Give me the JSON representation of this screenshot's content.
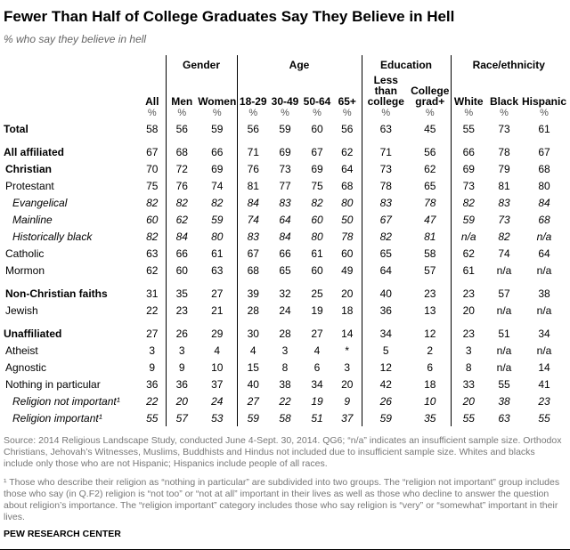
{
  "title": "Fewer Than Half of College Graduates Say They Believe in Hell",
  "subtitle": "% who say they believe in hell",
  "groups": [
    "Gender",
    "Age",
    "Education",
    "Race/ethnicity"
  ],
  "columns": [
    "All",
    "Men",
    "Women",
    "18-29",
    "30-49",
    "50-64",
    "65+",
    "Less than college",
    "College grad+",
    "White",
    "Black",
    "Hispanic"
  ],
  "unit": "%",
  "rows": [
    {
      "label": "Total",
      "style": "bold",
      "values": [
        "58",
        "56",
        "59",
        "56",
        "59",
        "60",
        "56",
        "63",
        "45",
        "55",
        "73",
        "61"
      ]
    },
    {
      "label": "All affiliated",
      "style": "bold gap",
      "values": [
        "67",
        "68",
        "66",
        "71",
        "69",
        "67",
        "62",
        "71",
        "56",
        "66",
        "78",
        "67"
      ]
    },
    {
      "label": "Christian",
      "style": "bold ind1",
      "values": [
        "70",
        "72",
        "69",
        "76",
        "73",
        "69",
        "64",
        "73",
        "62",
        "69",
        "79",
        "68"
      ]
    },
    {
      "label": "Protestant",
      "style": "ind1",
      "values": [
        "75",
        "76",
        "74",
        "81",
        "77",
        "75",
        "68",
        "78",
        "65",
        "73",
        "81",
        "80"
      ]
    },
    {
      "label": "Evangelical",
      "style": "it ind2",
      "values": [
        "82",
        "82",
        "82",
        "84",
        "83",
        "82",
        "80",
        "83",
        "78",
        "82",
        "83",
        "84"
      ]
    },
    {
      "label": "Mainline",
      "style": "it ind2",
      "values": [
        "60",
        "62",
        "59",
        "74",
        "64",
        "60",
        "50",
        "67",
        "47",
        "59",
        "73",
        "68"
      ]
    },
    {
      "label": "Historically black",
      "style": "it ind2",
      "values": [
        "82",
        "84",
        "80",
        "83",
        "84",
        "80",
        "78",
        "82",
        "81",
        "n/a",
        "82",
        "n/a"
      ]
    },
    {
      "label": "Catholic",
      "style": "ind1",
      "values": [
        "63",
        "66",
        "61",
        "67",
        "66",
        "61",
        "60",
        "65",
        "58",
        "62",
        "74",
        "64"
      ]
    },
    {
      "label": "Mormon",
      "style": "ind1",
      "values": [
        "62",
        "60",
        "63",
        "68",
        "65",
        "60",
        "49",
        "64",
        "57",
        "61",
        "n/a",
        "n/a"
      ]
    },
    {
      "label": "Non-Christian faiths",
      "style": "bold gap ind1",
      "values": [
        "31",
        "35",
        "27",
        "39",
        "32",
        "25",
        "20",
        "40",
        "23",
        "23",
        "57",
        "38"
      ]
    },
    {
      "label": "Jewish",
      "style": "ind1",
      "values": [
        "22",
        "23",
        "21",
        "28",
        "24",
        "19",
        "18",
        "36",
        "13",
        "20",
        "n/a",
        "n/a"
      ]
    },
    {
      "label": "Unaffiliated",
      "style": "bold gap",
      "values": [
        "27",
        "26",
        "29",
        "30",
        "28",
        "27",
        "14",
        "34",
        "12",
        "23",
        "51",
        "34"
      ]
    },
    {
      "label": "Atheist",
      "style": "ind1",
      "values": [
        "3",
        "3",
        "4",
        "4",
        "3",
        "4",
        "*",
        "5",
        "2",
        "3",
        "n/a",
        "n/a"
      ]
    },
    {
      "label": "Agnostic",
      "style": "ind1",
      "values": [
        "9",
        "9",
        "10",
        "15",
        "8",
        "6",
        "3",
        "12",
        "6",
        "8",
        "n/a",
        "14"
      ]
    },
    {
      "label": "Nothing in particular",
      "style": "ind1",
      "values": [
        "36",
        "36",
        "37",
        "40",
        "38",
        "34",
        "20",
        "42",
        "18",
        "33",
        "55",
        "41"
      ]
    },
    {
      "label": "Religion not important¹",
      "style": "it ind2",
      "values": [
        "22",
        "20",
        "24",
        "27",
        "22",
        "19",
        "9",
        "26",
        "10",
        "20",
        "38",
        "23"
      ]
    },
    {
      "label": "Religion important¹",
      "style": "it ind2 last",
      "values": [
        "55",
        "57",
        "53",
        "59",
        "58",
        "51",
        "37",
        "59",
        "35",
        "55",
        "63",
        "55"
      ]
    }
  ],
  "source": "Source: 2014 Religious Landscape Study, conducted June 4-Sept. 30, 2014. QG6; “n/a” indicates an insufficient sample size. Orthodox Christians, Jehovah’s Witnesses, Muslims, Buddhists and Hindus not included due to insufficient sample size. Whites and blacks include only those who are not Hispanic; Hispanics include people of all races.",
  "footnote": "¹ Those who describe their religion as “nothing in particular” are subdivided into two groups. The “religion not important” group includes those who say (in Q.F2) religion is “not too” or “not at all” important in their lives as well as those who decline to answer the question about religion’s importance. The “religion important” category includes those who say religion is “very” or “somewhat” important in their lives.",
  "brand": "PEW RESEARCH CENTER"
}
